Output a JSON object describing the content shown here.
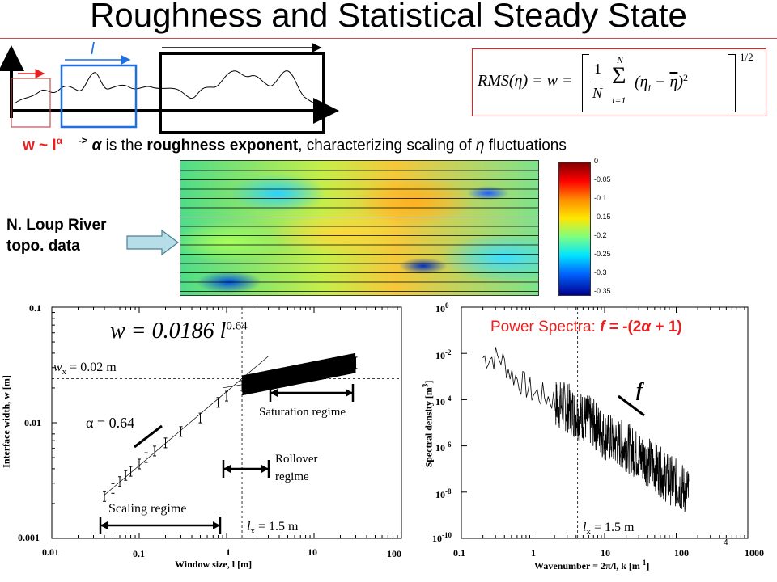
{
  "slide": {
    "title": "Roughness and Statistical Steady State",
    "window_symbol": "l",
    "scaling_law": {
      "prefix": "w ~ l",
      "exponent": "α",
      "arrow": "->",
      "alpha": "α",
      "is_the": " is the ",
      "bold_term": "roughness exponent",
      "rest": ", characterizing scaling of ",
      "eta": "η",
      "end": " fluctuations"
    },
    "rms_formula": {
      "lhs": "RMS(η) = w =",
      "one": "1",
      "N": "N",
      "sum_top": "N",
      "sum_sym": "Σ",
      "sum_bottom": "i=1",
      "body": "(η",
      "sub": "i",
      "minus": " − ",
      "eta_bar": "η",
      "close": ")",
      "square": "2",
      "power": "1/2"
    },
    "river_label": [
      "N. Loup River",
      "topo. data"
    ],
    "colorbar": {
      "ticks": [
        "0",
        "-0.05",
        "-0.1",
        "-0.15",
        "-0.2",
        "-0.25",
        "-0.3",
        "-0.35"
      ],
      "colors": [
        "#7f0000",
        "#ff0000",
        "#ff8c00",
        "#ffe600",
        "#7fff7f",
        "#00e5ff",
        "#0064ff",
        "#00008f"
      ]
    }
  },
  "left_plot": {
    "equation": "w = 0.0186 l",
    "equation_exp": "0.64",
    "wx_label": "w",
    "wx_sub": "x",
    "wx_value": " = 0.02 m",
    "alpha_label": "α = 0.64",
    "saturation": "Saturation regime",
    "rollover": [
      "Rollover",
      "regime"
    ],
    "scaling": "Scaling regime",
    "lx_label": "l",
    "lx_sub": "x",
    "lx_value": " = 1.5 m",
    "ylabel": "Interface width, w [m]",
    "xlabel": "Window size, l [m]",
    "yticks": [
      "0.1",
      "0.01",
      "0.001"
    ],
    "xticks": [
      "0.01",
      "0.1",
      "1",
      "10",
      "100"
    ]
  },
  "right_plot": {
    "title_prefix": "Power Spectra: ",
    "title_f": "f",
    "title_rest": " = -(2",
    "title_alpha": "α",
    "title_end": " + 1)",
    "f_label": "f",
    "lx_label": "l",
    "lx_sub": "x",
    "lx_value": " = 1.5 m",
    "ylabel": "Spectral density [m",
    "ylabel_sup": "3",
    "ylabel_end": "]",
    "xlabel": "Wavenumber = 2π/l, k [m",
    "xlabel_sup": "-1",
    "xlabel_end": "]",
    "yticks": [
      {
        "base": "10",
        "exp": "0"
      },
      {
        "base": "10",
        "exp": "-2"
      },
      {
        "base": "10",
        "exp": "-4"
      },
      {
        "base": "10",
        "exp": "-6"
      },
      {
        "base": "10",
        "exp": "-8"
      },
      {
        "base": "10",
        "exp": "-10"
      }
    ],
    "xticks": [
      "0.1",
      "1",
      "10",
      "100",
      "1000"
    ],
    "stray_mark": "4"
  },
  "chart_data": [
    {
      "type": "scatter",
      "title": "",
      "xlabel": "Window size, l [m]",
      "ylabel": "Interface width, w [m]",
      "x_scale": "log",
      "y_scale": "log",
      "xlim": [
        0.01,
        100
      ],
      "ylim": [
        0.001,
        0.1
      ],
      "fit": {
        "coefficient": 0.0186,
        "exponent": 0.64
      },
      "reference_lines": {
        "x": 1.5,
        "y": 0.024
      },
      "x": [
        0.04,
        0.05,
        0.06,
        0.07,
        0.08,
        0.1,
        0.12,
        0.15,
        0.2,
        0.3,
        0.5,
        0.8,
        1.0,
        1.5,
        2,
        3,
        5,
        10,
        20,
        30
      ],
      "y": [
        0.0023,
        0.0027,
        0.0031,
        0.0035,
        0.0038,
        0.0044,
        0.005,
        0.0057,
        0.0067,
        0.0084,
        0.011,
        0.015,
        0.017,
        0.021,
        0.023,
        0.025,
        0.027,
        0.03,
        0.032,
        0.033
      ]
    },
    {
      "type": "line",
      "title": "Power Spectra: f = -(2α + 1)",
      "xlabel": "Wavenumber = 2π/l, k [m-1]",
      "ylabel": "Spectral density [m3]",
      "x_scale": "log",
      "y_scale": "log",
      "xlim": [
        0.1,
        1000
      ],
      "ylim": [
        1e-10,
        1
      ],
      "reference_lines": {
        "x": 4.2
      },
      "x": [
        0.2,
        0.35,
        0.5,
        0.7,
        1,
        1.5,
        2,
        3,
        4,
        5,
        7,
        10,
        15,
        20,
        30,
        50,
        70,
        100,
        150
      ],
      "y": [
        0.01,
        0.01,
        0.002,
        0.0008,
        0.0003,
        0.0002,
        0.00015,
        0.0001,
        5e-05,
        4e-05,
        2e-05,
        6e-06,
        3e-06,
        2e-06,
        8e-07,
        3e-07,
        1e-07,
        5e-08,
        2e-08
      ]
    }
  ]
}
